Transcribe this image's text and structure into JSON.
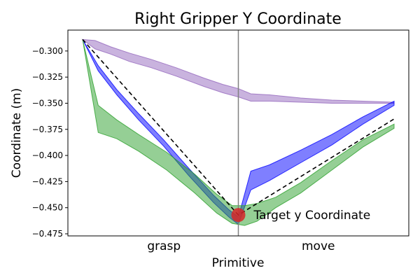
{
  "chart_data": {
    "type": "area",
    "title": "Right Gripper Y Coordinate",
    "xlabel": "Primitive",
    "ylabel": "Coordinate (m)",
    "categories": [
      "grasp",
      "move"
    ],
    "xlim": [
      0,
      1
    ],
    "ylim": [
      -0.477,
      -0.28
    ],
    "y_ticks": [
      -0.3,
      -0.325,
      -0.35,
      -0.375,
      -0.4,
      -0.425,
      -0.45,
      -0.475
    ],
    "y_tick_labels": [
      "−0.300",
      "−0.325",
      "−0.350",
      "−0.375",
      "−0.400",
      "−0.425",
      "−0.450",
      "−0.475"
    ],
    "boundary_x": 0.5,
    "grid": false,
    "series": [
      {
        "color": "#9467bd",
        "x": [
          0.0,
          0.04,
          0.09,
          0.15,
          0.22,
          0.3,
          0.39,
          0.45,
          0.5,
          0.54,
          0.6,
          0.7,
          0.8,
          0.9,
          1.0
        ],
        "upper": [
          -0.289,
          -0.29,
          -0.296,
          -0.302,
          -0.308,
          -0.316,
          -0.326,
          -0.332,
          -0.336,
          -0.341,
          -0.342,
          -0.345,
          -0.347,
          -0.348,
          -0.349
        ],
        "lower": [
          -0.289,
          -0.298,
          -0.303,
          -0.31,
          -0.316,
          -0.324,
          -0.334,
          -0.34,
          -0.344,
          -0.348,
          -0.348,
          -0.349,
          -0.35,
          -0.35,
          -0.35
        ]
      },
      {
        "color": "#0000ff",
        "x": [
          0.0,
          0.05,
          0.11,
          0.18,
          0.26,
          0.34,
          0.42,
          0.47,
          0.5,
          0.54,
          0.6,
          0.7,
          0.8,
          0.9,
          1.0
        ],
        "upper": [
          -0.289,
          -0.314,
          -0.337,
          -0.36,
          -0.385,
          -0.412,
          -0.438,
          -0.452,
          -0.459,
          -0.415,
          -0.409,
          -0.395,
          -0.38,
          -0.363,
          -0.348
        ],
        "lower": [
          -0.289,
          -0.319,
          -0.342,
          -0.366,
          -0.391,
          -0.419,
          -0.445,
          -0.459,
          -0.466,
          -0.433,
          -0.424,
          -0.407,
          -0.39,
          -0.37,
          -0.352
        ]
      },
      {
        "color": "#2ca02c",
        "x": [
          0.0,
          0.05,
          0.11,
          0.18,
          0.27,
          0.36,
          0.43,
          0.48,
          0.52,
          0.56,
          0.62,
          0.7,
          0.8,
          0.9,
          1.0
        ],
        "upper": [
          -0.289,
          -0.352,
          -0.366,
          -0.38,
          -0.397,
          -0.418,
          -0.437,
          -0.448,
          -0.448,
          -0.446,
          -0.44,
          -0.426,
          -0.405,
          -0.385,
          -0.37
        ],
        "lower": [
          -0.289,
          -0.378,
          -0.384,
          -0.396,
          -0.414,
          -0.436,
          -0.455,
          -0.465,
          -0.467,
          -0.463,
          -0.45,
          -0.436,
          -0.414,
          -0.392,
          -0.374
        ]
      }
    ],
    "target_line": {
      "x": [
        0.0,
        0.5,
        1.0
      ],
      "y": [
        -0.289,
        -0.457,
        -0.365
      ]
    },
    "target_point": {
      "x": 0.5,
      "y": -0.457,
      "color": "#d62728"
    },
    "annotation": "Target y Coordinate"
  }
}
